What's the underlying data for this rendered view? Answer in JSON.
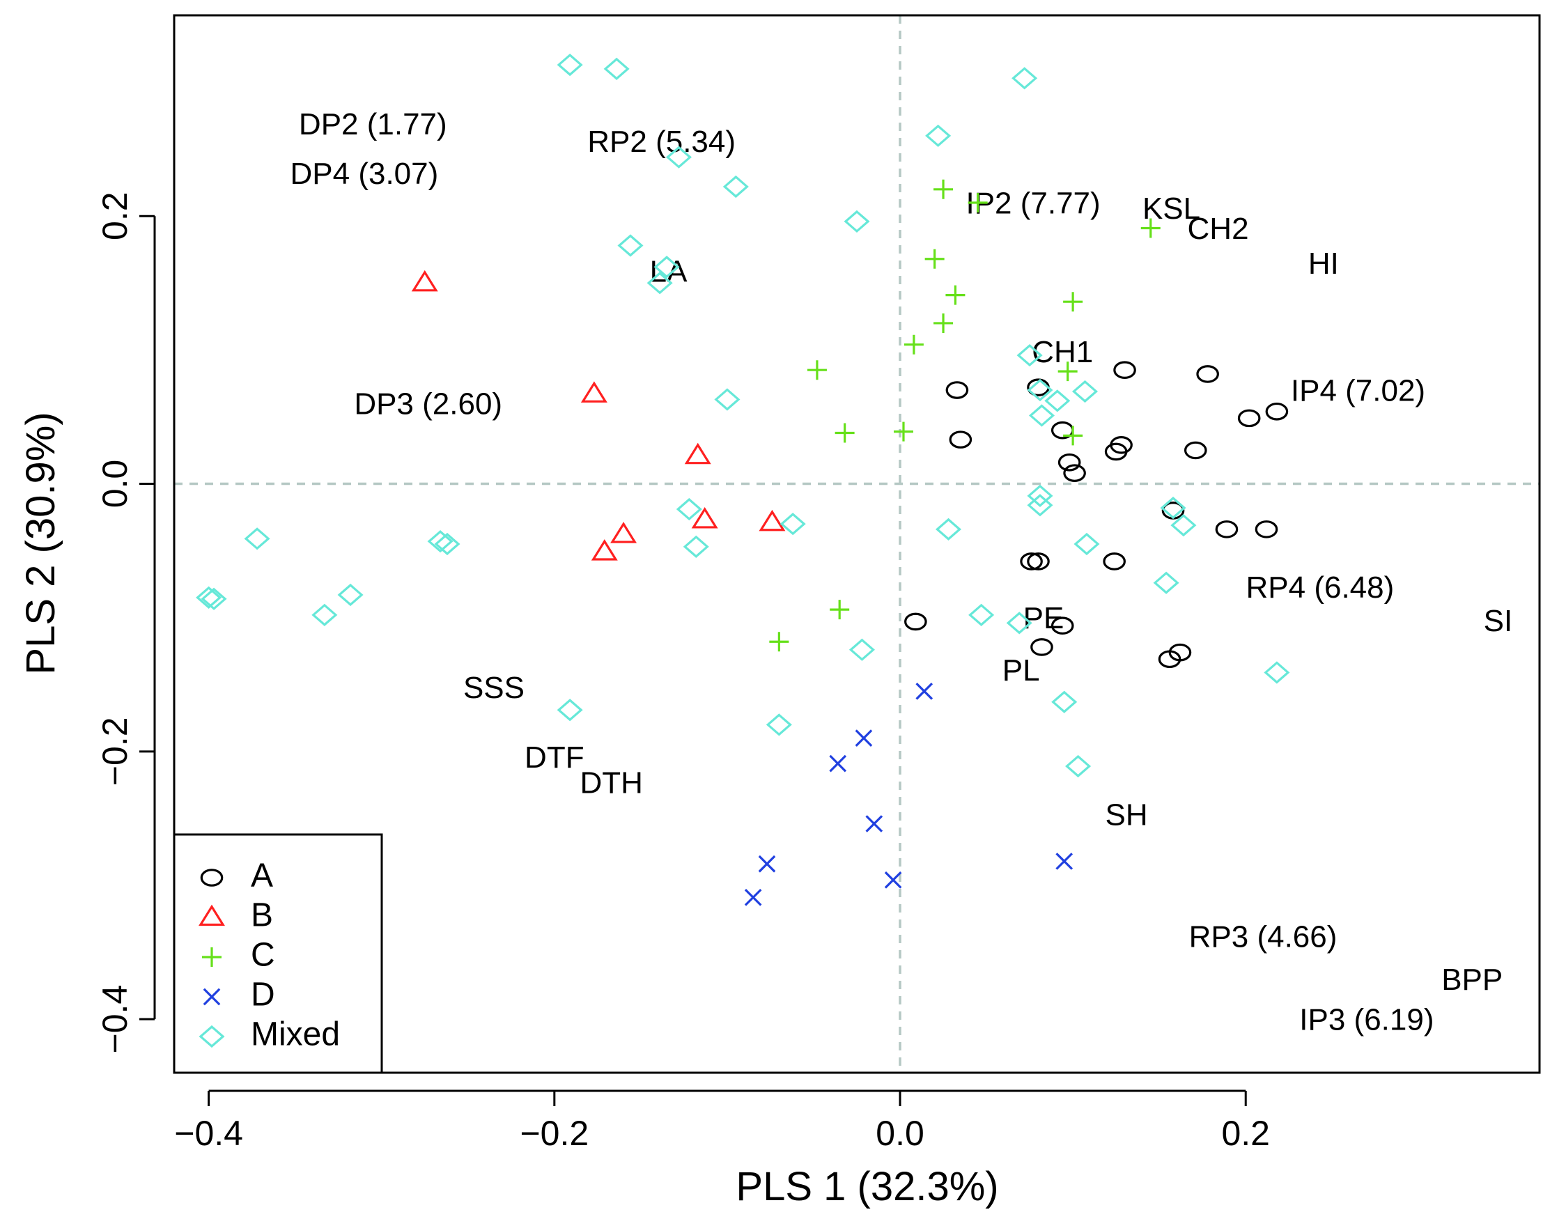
{
  "chart_data": {
    "type": "scatter",
    "xlabel": "PLS 1 (32.3%)",
    "ylabel": "PLS 2 (30.9%)",
    "xlim": [
      -0.42,
      0.37
    ],
    "ylim": [
      -0.44,
      0.35
    ],
    "x_ticks": [
      -0.4,
      -0.2,
      0.0,
      0.2
    ],
    "y_ticks": [
      -0.4,
      -0.2,
      0.0,
      0.2
    ],
    "x_tick_labels": [
      "−0.4",
      "−0.2",
      "0.0",
      "0.2"
    ],
    "y_tick_labels": [
      "−0.4",
      "−0.2",
      "0.0",
      "0.2"
    ],
    "reference_lines": {
      "x": 0,
      "y": 0,
      "style": "dashed"
    },
    "legend_position": "bottom-left",
    "series": [
      {
        "name": "A",
        "marker": "circle",
        "color": "#000000",
        "points": [
          [
            0.033,
            0.07
          ],
          [
            0.035,
            0.033
          ],
          [
            0.08,
            0.072
          ],
          [
            0.13,
            0.085
          ],
          [
            0.178,
            0.082
          ],
          [
            0.094,
            0.04
          ],
          [
            0.128,
            0.029
          ],
          [
            0.125,
            0.024
          ],
          [
            0.171,
            0.025
          ],
          [
            0.202,
            0.049
          ],
          [
            0.218,
            0.054
          ],
          [
            0.098,
            0.016
          ],
          [
            0.101,
            0.008
          ],
          [
            0.158,
            -0.02
          ],
          [
            0.189,
            -0.034
          ],
          [
            0.212,
            -0.034
          ],
          [
            0.076,
            -0.058
          ],
          [
            0.08,
            -0.058
          ],
          [
            0.124,
            -0.058
          ],
          [
            0.009,
            -0.103
          ],
          [
            0.094,
            -0.106
          ],
          [
            0.082,
            -0.122
          ],
          [
            0.156,
            -0.131
          ],
          [
            0.162,
            -0.126
          ]
        ]
      },
      {
        "name": "B",
        "marker": "triangle",
        "color": "#ff2020",
        "points": [
          [
            -0.275,
            0.15
          ],
          [
            -0.177,
            0.067
          ],
          [
            -0.117,
            0.021
          ],
          [
            -0.113,
            -0.027
          ],
          [
            -0.16,
            -0.038
          ],
          [
            -0.171,
            -0.051
          ],
          [
            -0.074,
            -0.029
          ]
        ]
      },
      {
        "name": "C",
        "marker": "plus",
        "color": "#66e01a",
        "points": [
          [
            0.025,
            0.22
          ],
          [
            0.045,
            0.21
          ],
          [
            0.145,
            0.191
          ],
          [
            0.02,
            0.168
          ],
          [
            0.032,
            0.141
          ],
          [
            0.1,
            0.136
          ],
          [
            0.025,
            0.12
          ],
          [
            0.008,
            0.104
          ],
          [
            -0.048,
            0.085
          ],
          [
            0.097,
            0.084
          ],
          [
            -0.032,
            0.038
          ],
          [
            0.002,
            0.039
          ],
          [
            0.1,
            0.036
          ],
          [
            -0.035,
            -0.094
          ],
          [
            -0.07,
            -0.118
          ]
        ]
      },
      {
        "name": "D",
        "marker": "cross",
        "color": "#2040e0",
        "points": [
          [
            0.014,
            -0.155
          ],
          [
            -0.021,
            -0.19
          ],
          [
            -0.036,
            -0.209
          ],
          [
            -0.015,
            -0.254
          ],
          [
            0.095,
            -0.282
          ],
          [
            -0.077,
            -0.284
          ],
          [
            -0.004,
            -0.296
          ],
          [
            -0.085,
            -0.309
          ]
        ]
      },
      {
        "name": "Mixed",
        "marker": "diamond",
        "color": "#66e8d8",
        "points": [
          [
            -0.191,
            0.313
          ],
          [
            -0.164,
            0.31
          ],
          [
            0.072,
            0.303
          ],
          [
            0.022,
            0.26
          ],
          [
            -0.128,
            0.244
          ],
          [
            -0.095,
            0.222
          ],
          [
            -0.025,
            0.196
          ],
          [
            -0.156,
            0.178
          ],
          [
            -0.135,
            0.162
          ],
          [
            -0.139,
            0.15
          ],
          [
            0.075,
            0.096
          ],
          [
            0.081,
            0.07
          ],
          [
            0.107,
            0.069
          ],
          [
            0.091,
            0.062
          ],
          [
            0.082,
            0.051
          ],
          [
            -0.1,
            0.063
          ],
          [
            0.081,
            -0.009
          ],
          [
            0.081,
            -0.016
          ],
          [
            0.158,
            -0.018
          ],
          [
            0.164,
            -0.031
          ],
          [
            -0.122,
            -0.019
          ],
          [
            -0.062,
            -0.03
          ],
          [
            0.028,
            -0.034
          ],
          [
            -0.118,
            -0.047
          ],
          [
            0.108,
            -0.045
          ],
          [
            -0.372,
            -0.041
          ],
          [
            -0.266,
            -0.043
          ],
          [
            -0.262,
            -0.045
          ],
          [
            0.154,
            -0.074
          ],
          [
            -0.4,
            -0.085
          ],
          [
            -0.397,
            -0.086
          ],
          [
            -0.318,
            -0.083
          ],
          [
            -0.333,
            -0.098
          ],
          [
            0.047,
            -0.098
          ],
          [
            0.069,
            -0.104
          ],
          [
            -0.022,
            -0.124
          ],
          [
            0.218,
            -0.141
          ],
          [
            0.095,
            -0.163
          ],
          [
            -0.191,
            -0.169
          ],
          [
            -0.07,
            -0.18
          ],
          [
            0.103,
            -0.211
          ]
        ]
      }
    ],
    "variable_labels": [
      {
        "text": "DP2 (1.77)",
        "x": -0.305,
        "y": 0.267
      },
      {
        "text": "DP4 (3.07)",
        "x": -0.31,
        "y": 0.23
      },
      {
        "text": "RP2 (5.34)",
        "x": -0.138,
        "y": 0.254
      },
      {
        "text": "IP2 (7.77)",
        "x": 0.077,
        "y": 0.208
      },
      {
        "text": "KSL",
        "x": 0.157,
        "y": 0.204
      },
      {
        "text": "CH2",
        "x": 0.184,
        "y": 0.189
      },
      {
        "text": "HI",
        "x": 0.245,
        "y": 0.163
      },
      {
        "text": "LA",
        "x": -0.134,
        "y": 0.157
      },
      {
        "text": "CH1",
        "x": 0.094,
        "y": 0.097
      },
      {
        "text": "IP4 (7.02)",
        "x": 0.265,
        "y": 0.068
      },
      {
        "text": "DP3 (2.60)",
        "x": -0.273,
        "y": 0.058
      },
      {
        "text": "RP4 (6.48)",
        "x": 0.243,
        "y": -0.079
      },
      {
        "text": "SI",
        "x": 0.346,
        "y": -0.104
      },
      {
        "text": "PE",
        "x": 0.083,
        "y": -0.102
      },
      {
        "text": "PL",
        "x": 0.07,
        "y": -0.141
      },
      {
        "text": "SSS",
        "x": -0.235,
        "y": -0.154
      },
      {
        "text": "DTF",
        "x": -0.2,
        "y": -0.206
      },
      {
        "text": "DTH",
        "x": -0.167,
        "y": -0.225
      },
      {
        "text": "SH",
        "x": 0.131,
        "y": -0.249
      },
      {
        "text": "RP3 (4.66)",
        "x": 0.21,
        "y": -0.34
      },
      {
        "text": "BPP",
        "x": 0.331,
        "y": -0.372
      },
      {
        "text": "IP3 (6.19)",
        "x": 0.27,
        "y": -0.402
      }
    ]
  }
}
